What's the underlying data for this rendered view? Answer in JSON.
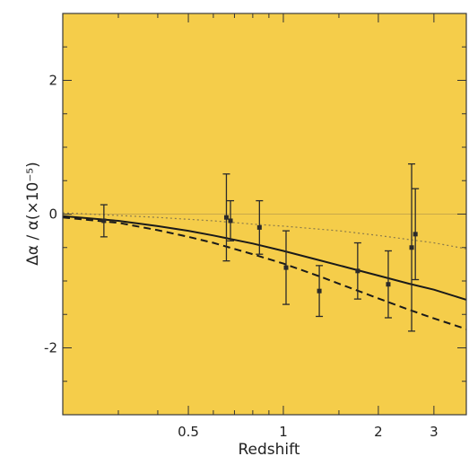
{
  "chart_data": {
    "type": "scatter",
    "xscale": "log",
    "xlim": [
      0.2,
      3.8
    ],
    "ylim": [
      -3.0,
      3.0
    ],
    "xlabel": "Redshift",
    "ylabel": "Δα / α(×10⁻⁵)",
    "xticks": [
      0.5,
      1,
      2,
      3
    ],
    "xtick_labels": [
      "0.5",
      "1",
      "2",
      "3"
    ],
    "yticks": [
      -2,
      0,
      2
    ],
    "ytick_labels": [
      "-2",
      "0",
      "2"
    ],
    "grid": false,
    "background": "#f5cd4a",
    "series": [
      {
        "style": "points-with-errorbars",
        "color": "#2a2a2a",
        "points": [
          {
            "x": 0.27,
            "y": -0.1,
            "err": 0.24
          },
          {
            "x": 0.66,
            "y": -0.05,
            "err": 0.65
          },
          {
            "x": 0.68,
            "y": -0.1,
            "err": 0.3
          },
          {
            "x": 0.84,
            "y": -0.2,
            "err": 0.4
          },
          {
            "x": 1.02,
            "y": -0.8,
            "err": 0.55
          },
          {
            "x": 1.3,
            "y": -1.15,
            "err": 0.38
          },
          {
            "x": 1.72,
            "y": -0.85,
            "err": 0.42
          },
          {
            "x": 2.15,
            "y": -1.05,
            "err": 0.5
          },
          {
            "x": 2.55,
            "y": -0.5,
            "err": 1.25
          },
          {
            "x": 2.62,
            "y": -0.3,
            "err": 0.68
          }
        ]
      },
      {
        "style": "solid-curve",
        "color": "#1a1a1a",
        "x": [
          0.2,
          0.3,
          0.4,
          0.5,
          0.6,
          0.8,
          1.0,
          1.3,
          1.6,
          2.0,
          2.5,
          3.0,
          3.8
        ],
        "y": [
          -0.03,
          -0.1,
          -0.18,
          -0.25,
          -0.32,
          -0.44,
          -0.55,
          -0.69,
          -0.8,
          -0.92,
          -1.04,
          -1.13,
          -1.28
        ]
      },
      {
        "style": "dashed-curve",
        "color": "#1a1a1a",
        "x": [
          0.2,
          0.3,
          0.4,
          0.5,
          0.6,
          0.8,
          1.0,
          1.3,
          1.6,
          2.0,
          2.5,
          3.0,
          3.8
        ],
        "y": [
          -0.05,
          -0.13,
          -0.24,
          -0.34,
          -0.43,
          -0.6,
          -0.74,
          -0.93,
          -1.09,
          -1.26,
          -1.43,
          -1.56,
          -1.72
        ]
      },
      {
        "style": "dotted-curve",
        "color": "#8a7a4a",
        "x": [
          0.2,
          0.4,
          0.6,
          0.8,
          1.0,
          1.5,
          2.0,
          2.5,
          3.0,
          3.8
        ],
        "y": [
          0.02,
          -0.05,
          -0.1,
          -0.15,
          -0.18,
          -0.25,
          -0.32,
          -0.38,
          -0.43,
          -0.52
        ]
      }
    ]
  }
}
